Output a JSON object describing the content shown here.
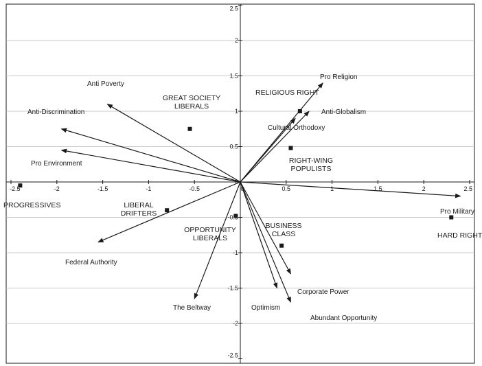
{
  "chart_data": {
    "type": "scatter",
    "title": "",
    "xlabel": "",
    "ylabel": "",
    "xlim": [
      -2.5,
      2.5
    ],
    "ylim": [
      -2.5,
      2.5
    ],
    "grid": "horizontal",
    "x_ticks": [
      "-2.5",
      "-2",
      "-1.5",
      "-1",
      "-0.5",
      "0",
      "0.5",
      "1",
      "1.5",
      "2",
      "2.5"
    ],
    "y_ticks": [
      "2.5",
      "2",
      "1.5",
      "1",
      "0.5",
      "0",
      "-0.5",
      "-1",
      "-1.5",
      "-2",
      "-2.5"
    ],
    "vectors": [
      {
        "name": "Anti Poverty",
        "x": -1.45,
        "y": 1.1
      },
      {
        "name": "Anti-Discrimination",
        "x": -1.95,
        "y": 0.75
      },
      {
        "name": "Pro Environment",
        "x": -1.95,
        "y": 0.45
      },
      {
        "name": "Federal Authority",
        "x": -1.55,
        "y": -0.85
      },
      {
        "name": "The Beltway",
        "x": -0.5,
        "y": -1.65
      },
      {
        "name": "Optimism",
        "x": 0.4,
        "y": -1.5
      },
      {
        "name": "Abundant Opportunity",
        "x": 0.55,
        "y": -1.7
      },
      {
        "name": "Corporate Power",
        "x": 0.55,
        "y": -1.3
      },
      {
        "name": "Pro Military",
        "x": 2.4,
        "y": -0.2
      },
      {
        "name": "Pro Religion",
        "x": 0.9,
        "y": 1.4
      },
      {
        "name": "Anti-Globalism",
        "x": 0.75,
        "y": 1.0
      },
      {
        "name": "Cultural Orthodoxy",
        "x": 0.6,
        "y": 0.9
      }
    ],
    "groups": [
      {
        "name": "GREAT SOCIETY\nLIBERALS",
        "x": -0.55,
        "y": 0.75
      },
      {
        "name": "RELIGIOUS RIGHT",
        "x": 0.65,
        "y": 1.0
      },
      {
        "name": "RIGHT-WING\nPOPULISTS",
        "x": 0.55,
        "y": 0.48
      },
      {
        "name": "PROGRESSIVES",
        "x": -2.4,
        "y": -0.05
      },
      {
        "name": "LIBERAL\nDRIFTERS",
        "x": -0.8,
        "y": -0.4
      },
      {
        "name": "OPPORTUNITY\nLIBERALS",
        "x": -0.05,
        "y": -0.48
      },
      {
        "name": "BUSINESS\nCLASS",
        "x": 0.45,
        "y": -0.9
      },
      {
        "name": "HARD RIGHT",
        "x": 2.3,
        "y": -0.5
      }
    ]
  }
}
